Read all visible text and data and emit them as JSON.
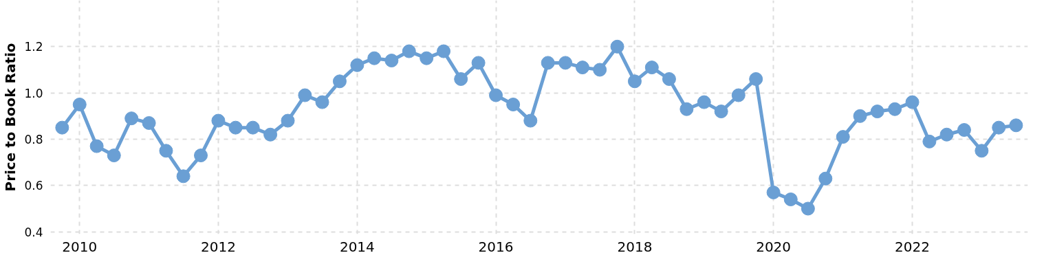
{
  "chart_data": {
    "type": "line",
    "ylabel": "Price to Book Ratio",
    "x": [
      "2009-10",
      "2010-01",
      "2010-04",
      "2010-07",
      "2010-10",
      "2011-01",
      "2011-04",
      "2011-07",
      "2011-10",
      "2012-01",
      "2012-04",
      "2012-07",
      "2012-10",
      "2013-01",
      "2013-04",
      "2013-07",
      "2013-10",
      "2014-01",
      "2014-04",
      "2014-07",
      "2014-10",
      "2015-01",
      "2015-04",
      "2015-07",
      "2015-10",
      "2016-01",
      "2016-04",
      "2016-07",
      "2016-10",
      "2017-01",
      "2017-04",
      "2017-07",
      "2017-10",
      "2018-01",
      "2018-04",
      "2018-07",
      "2018-10",
      "2019-01",
      "2019-04",
      "2019-07",
      "2019-10",
      "2020-01",
      "2020-04",
      "2020-07",
      "2020-10",
      "2021-01",
      "2021-04",
      "2021-07",
      "2021-10",
      "2022-01",
      "2022-04",
      "2022-07",
      "2022-10",
      "2023-01",
      "2023-04",
      "2023-07"
    ],
    "series": [
      {
        "color": "#6a9fd4",
        "values": [
          0.85,
          0.95,
          0.77,
          0.73,
          0.89,
          0.87,
          0.75,
          0.64,
          0.73,
          0.88,
          0.85,
          0.85,
          0.82,
          0.88,
          0.99,
          0.96,
          1.05,
          1.12,
          1.15,
          1.14,
          1.18,
          1.15,
          1.18,
          1.06,
          1.13,
          0.99,
          0.95,
          0.88,
          1.13,
          1.13,
          1.11,
          1.1,
          1.2,
          1.05,
          1.11,
          1.06,
          0.93,
          0.96,
          0.92,
          0.99,
          1.06,
          0.57,
          0.54,
          0.5,
          0.63,
          0.81,
          0.9,
          0.92,
          0.93,
          0.96,
          0.79,
          0.82,
          0.84,
          0.75,
          0.85,
          0.86
        ]
      }
    ],
    "xlim": [
      "2009-08",
      "2023-09"
    ],
    "xticks": [
      "2010",
      "2012",
      "2014",
      "2016",
      "2018",
      "2020",
      "2022"
    ],
    "ylim": [
      0.39,
      1.4
    ],
    "yticks": [
      0.4,
      0.6,
      0.8,
      {
        "value": 1.0,
        "label": "1.0"
      },
      1.2
    ],
    "grid": true,
    "marker": "circle",
    "line_style": "solid"
  }
}
